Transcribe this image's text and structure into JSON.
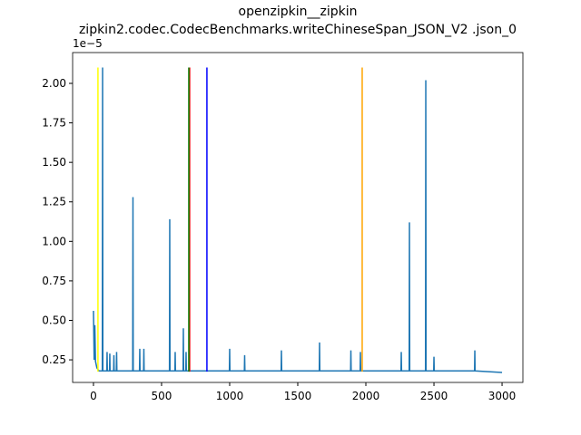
{
  "chart_data": {
    "type": "line",
    "title": "openzipkin__zipkin",
    "subtitle": "zipkin2.codec.CodecBenchmarks.writeChineseSpan_JSON_V2 .json_0",
    "y_offset_label": "1e−5",
    "x": [
      0,
      5,
      10,
      15,
      25,
      40,
      65,
      67,
      69,
      98,
      100,
      102,
      118,
      120,
      122,
      148,
      150,
      152,
      168,
      170,
      172,
      288,
      290,
      292,
      338,
      340,
      342,
      368,
      370,
      372,
      558,
      560,
      562,
      598,
      600,
      602,
      658,
      660,
      662,
      678,
      680,
      682,
      998,
      1000,
      1002,
      1108,
      1110,
      1112,
      1378,
      1380,
      1382,
      1658,
      1660,
      1662,
      1888,
      1890,
      1892,
      1958,
      1960,
      1962,
      2258,
      2260,
      2262,
      2318,
      2320,
      2322,
      2438,
      2440,
      2442,
      2498,
      2500,
      2502,
      2798,
      2800,
      2802,
      3000
    ],
    "series": [
      {
        "color": "#1f77b4",
        "values": [
          0.56,
          0.25,
          0.47,
          0.24,
          0.2,
          0.18,
          0.18,
          2.1,
          0.18,
          0.18,
          0.3,
          0.18,
          0.18,
          0.29,
          0.18,
          0.18,
          0.28,
          0.18,
          0.18,
          0.3,
          0.18,
          0.18,
          1.28,
          0.18,
          0.18,
          0.32,
          0.18,
          0.18,
          0.32,
          0.18,
          0.18,
          1.14,
          0.18,
          0.18,
          0.3,
          0.18,
          0.18,
          0.45,
          0.18,
          0.18,
          0.3,
          0.18,
          0.18,
          0.32,
          0.18,
          0.18,
          0.28,
          0.18,
          0.18,
          0.31,
          0.18,
          0.18,
          0.36,
          0.18,
          0.18,
          0.31,
          0.18,
          0.18,
          0.3,
          0.18,
          0.18,
          0.3,
          0.18,
          0.18,
          1.12,
          0.18,
          0.18,
          2.02,
          0.18,
          0.18,
          0.27,
          0.18,
          0.18,
          0.31,
          0.18,
          0.17
        ]
      }
    ],
    "vlines": [
      {
        "x": 33,
        "ymin": 0.175,
        "ymax": 2.1,
        "color": "yellow"
      },
      {
        "x": 706,
        "ymin": 0.175,
        "ymax": 2.1,
        "color": "red"
      },
      {
        "x": 700,
        "ymin": 0.175,
        "ymax": 2.1,
        "color": "green"
      },
      {
        "x": 833,
        "ymin": 0.175,
        "ymax": 2.1,
        "color": "blue"
      },
      {
        "x": 1973,
        "ymin": 0.175,
        "ymax": 2.1,
        "color": "orange"
      }
    ],
    "xlim": [
      -153,
      3153
    ],
    "ylim": [
      0.107,
      2.195
    ],
    "xticks": [
      0,
      500,
      1000,
      1500,
      2000,
      2500,
      3000
    ],
    "yticks": [
      0.25,
      {
        "value": 0.5,
        "label": "0.50"
      },
      0.75,
      {
        "value": 1,
        "label": "1.00"
      },
      1.25,
      {
        "value": 1.5,
        "label": "1.50"
      },
      1.75,
      {
        "value": 2,
        "label": "2.00"
      }
    ]
  }
}
